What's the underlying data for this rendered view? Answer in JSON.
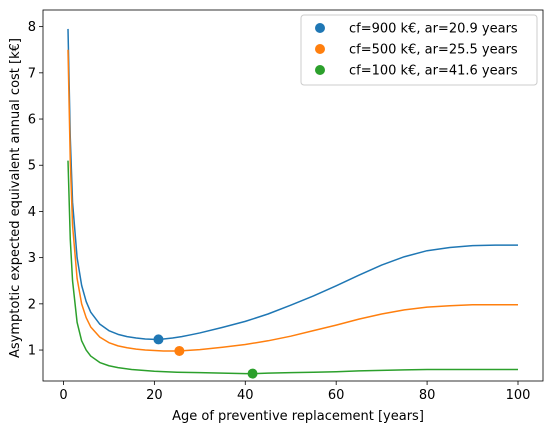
{
  "chart_data": {
    "type": "line",
    "title": "",
    "xlabel": "Age of preventive replacement [years]",
    "ylabel": "Asymptotic expected equivalent annual cost [k€]",
    "xlim": [
      -4.5,
      105.5
    ],
    "ylim": [
      0.33,
      8.36
    ],
    "xticks": [
      0,
      20,
      40,
      60,
      80,
      100
    ],
    "yticks": [
      1,
      2,
      3,
      4,
      5,
      6,
      7,
      8
    ],
    "grid": false,
    "legend_position": "top-right",
    "series": [
      {
        "name": "cf=900 k€, ar=20.9 years",
        "color": "#1f77b4",
        "x": [
          1,
          1.5,
          2,
          3,
          4,
          5,
          6,
          8,
          10,
          12,
          14,
          16,
          18,
          20,
          20.9,
          22,
          24,
          26,
          28,
          30,
          35,
          40,
          45,
          50,
          55,
          60,
          65,
          70,
          75,
          80,
          85,
          90,
          95,
          100
        ],
        "y": [
          7.95,
          5.6,
          4.2,
          3.0,
          2.4,
          2.05,
          1.82,
          1.56,
          1.42,
          1.34,
          1.29,
          1.26,
          1.24,
          1.23,
          1.23,
          1.24,
          1.26,
          1.29,
          1.33,
          1.37,
          1.49,
          1.62,
          1.78,
          1.97,
          2.17,
          2.39,
          2.62,
          2.84,
          3.02,
          3.15,
          3.22,
          3.26,
          3.27,
          3.27
        ],
        "optimum": {
          "x": 20.9,
          "y": 1.23
        }
      },
      {
        "name": "cf=500 k€, ar=25.5 years",
        "color": "#ff7f0e",
        "x": [
          1,
          1.5,
          2,
          3,
          4,
          5,
          6,
          8,
          10,
          12,
          14,
          16,
          18,
          20,
          22,
          24,
          25.5,
          27,
          30,
          35,
          40,
          45,
          50,
          55,
          60,
          65,
          70,
          75,
          80,
          85,
          90,
          95,
          100
        ],
        "y": [
          7.5,
          5.1,
          3.7,
          2.55,
          2.0,
          1.7,
          1.5,
          1.28,
          1.16,
          1.09,
          1.05,
          1.02,
          1.0,
          0.99,
          0.98,
          0.98,
          0.98,
          0.99,
          1.01,
          1.06,
          1.12,
          1.2,
          1.3,
          1.42,
          1.54,
          1.67,
          1.78,
          1.87,
          1.93,
          1.96,
          1.98,
          1.98,
          1.98
        ],
        "optimum": {
          "x": 25.5,
          "y": 0.98
        }
      },
      {
        "name": "cf=100 k€, ar=41.6 years",
        "color": "#2ca02c",
        "x": [
          1,
          1.5,
          2,
          3,
          4,
          5,
          6,
          8,
          10,
          12,
          15,
          20,
          25,
          30,
          35,
          40,
          41.6,
          45,
          50,
          55,
          60,
          65,
          70,
          75,
          80,
          85,
          90,
          95,
          100
        ],
        "y": [
          5.1,
          3.4,
          2.5,
          1.6,
          1.2,
          1.0,
          0.87,
          0.73,
          0.66,
          0.62,
          0.58,
          0.54,
          0.52,
          0.51,
          0.5,
          0.49,
          0.49,
          0.5,
          0.51,
          0.52,
          0.53,
          0.55,
          0.56,
          0.57,
          0.58,
          0.58,
          0.58,
          0.58,
          0.58
        ],
        "optimum": {
          "x": 41.6,
          "y": 0.49
        }
      }
    ]
  }
}
